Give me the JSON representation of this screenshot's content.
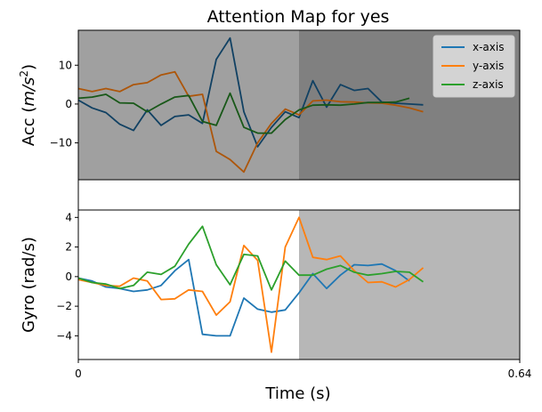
{
  "title": "Attention Map for yes",
  "xlabel": "Time (s)",
  "x_tick_labels": [
    "0",
    "0.64"
  ],
  "legend": [
    {
      "label": "x-axis",
      "color": "#1f77b4"
    },
    {
      "label": "y-axis",
      "color": "#ff7f0e"
    },
    {
      "label": "z-axis",
      "color": "#2ca02c"
    }
  ],
  "panels": {
    "acc": {
      "ylabel_main": "Acc (",
      "ylabel_unit": "m/s",
      "ylabel_exp": "2",
      "ylabel_end": ")",
      "ticks": [
        "10",
        "0",
        "−10"
      ]
    },
    "gyro": {
      "ylabel": "Gyro (rad/s)",
      "ticks": [
        "4",
        "2",
        "0",
        "−2",
        "−4"
      ]
    }
  },
  "chart_data": [
    {
      "type": "line",
      "title": "Attention Map for yes",
      "ylabel": "Acc (m/s^2)",
      "xlim": [
        0,
        0.64
      ],
      "ylim": [
        -19.5,
        19
      ],
      "x": [
        0,
        0.02,
        0.04,
        0.06,
        0.08,
        0.1,
        0.12,
        0.14,
        0.16,
        0.18,
        0.2,
        0.22,
        0.24,
        0.26,
        0.28,
        0.3,
        0.32,
        0.34,
        0.36,
        0.38,
        0.4,
        0.42,
        0.44,
        0.46,
        0.48,
        0.5,
        0.52,
        0.54,
        0.56,
        0.58,
        0.6
      ],
      "series": [
        {
          "name": "x-axis",
          "color": "#1f77b4",
          "values": [
            1,
            -1,
            -2.2,
            -5.2,
            -6.8,
            -1.5,
            -5.5,
            -3.2,
            -2.8,
            -5,
            11.5,
            17,
            -2,
            -11,
            -6,
            -2,
            -3.5,
            6,
            -0.8,
            5,
            3.5,
            4,
            0.5,
            0.2,
            0,
            -0.2,
            null,
            null,
            null,
            null,
            null
          ]
        },
        {
          "name": "y-axis",
          "color": "#ff7f0e",
          "values": [
            4,
            3.2,
            4,
            3.2,
            5,
            5.5,
            7.5,
            8.3,
            2,
            2.5,
            -12.2,
            -14.3,
            -17.5,
            -10,
            -5,
            -1.3,
            -2.8,
            0.8,
            1,
            0.6,
            0.5,
            0.3,
            0.2,
            -0.3,
            -1,
            -2,
            null,
            null,
            null,
            null,
            null
          ]
        },
        {
          "name": "z-axis",
          "color": "#2ca02c",
          "values": [
            1.5,
            1.8,
            2.5,
            0.3,
            0.2,
            -2,
            0,
            1.8,
            2.2,
            -4.5,
            -5.5,
            2.8,
            -6,
            -7.5,
            -7.5,
            -4,
            -1.5,
            -0.3,
            -0.2,
            -0.3,
            0,
            0.4,
            0.4,
            0.5,
            1.5,
            null,
            null,
            null,
            null,
            null,
            null
          ]
        }
      ],
      "shading": [
        {
          "x_range": [
            0,
            0.32
          ],
          "color": "#a0a0a0"
        },
        {
          "x_range": [
            0.32,
            0.64
          ],
          "color": "#808080"
        }
      ]
    },
    {
      "type": "line",
      "ylabel": "Gyro (rad/s)",
      "xlabel": "Time (s)",
      "xlim": [
        0,
        0.64
      ],
      "ylim": [
        -5.6,
        4.5
      ],
      "x": [
        0,
        0.02,
        0.04,
        0.06,
        0.08,
        0.1,
        0.12,
        0.14,
        0.16,
        0.18,
        0.2,
        0.22,
        0.24,
        0.26,
        0.28,
        0.3,
        0.32,
        0.34,
        0.36,
        0.38,
        0.4,
        0.42,
        0.44,
        0.46,
        0.48,
        0.5,
        0.52,
        0.54,
        0.56,
        0.58,
        0.6
      ],
      "series": [
        {
          "name": "x-axis",
          "color": "#1f77b4",
          "values": [
            -0.1,
            -0.3,
            -0.7,
            -0.8,
            -1,
            -0.9,
            -0.6,
            0.4,
            1.15,
            -3.9,
            -4,
            -4,
            -1.45,
            -2.2,
            -2.4,
            -2.25,
            -1.1,
            0.2,
            -0.8,
            0.1,
            0.8,
            0.75,
            0.85,
            0.4,
            -0.3,
            null,
            null,
            null,
            null,
            null,
            null
          ]
        },
        {
          "name": "y-axis",
          "color": "#ff7f0e",
          "values": [
            -0.2,
            -0.4,
            -0.6,
            -0.65,
            -0.1,
            -0.3,
            -1.55,
            -1.5,
            -0.9,
            -1,
            -2.6,
            -1.7,
            2.1,
            1.1,
            -5.1,
            2,
            4,
            1.3,
            1.15,
            1.4,
            0.4,
            -0.4,
            -0.35,
            -0.7,
            -0.2,
            0.6,
            null,
            null,
            null,
            null,
            null
          ]
        },
        {
          "name": "z-axis",
          "color": "#2ca02c",
          "values": [
            -0.1,
            -0.4,
            -0.5,
            -0.8,
            -0.6,
            0.3,
            0.15,
            0.7,
            2.2,
            3.4,
            0.8,
            -0.55,
            1.5,
            1.4,
            -0.9,
            1.05,
            0.1,
            0.1,
            0.5,
            0.75,
            0.3,
            0.1,
            0.2,
            0.35,
            0.3,
            -0.35,
            null,
            null,
            null,
            null,
            null
          ]
        }
      ],
      "shading": [
        {
          "x_range": [
            0,
            0.32
          ],
          "color": "#ffffff"
        },
        {
          "x_range": [
            0.32,
            0.64
          ],
          "color": "#b7b7b7"
        }
      ]
    }
  ]
}
